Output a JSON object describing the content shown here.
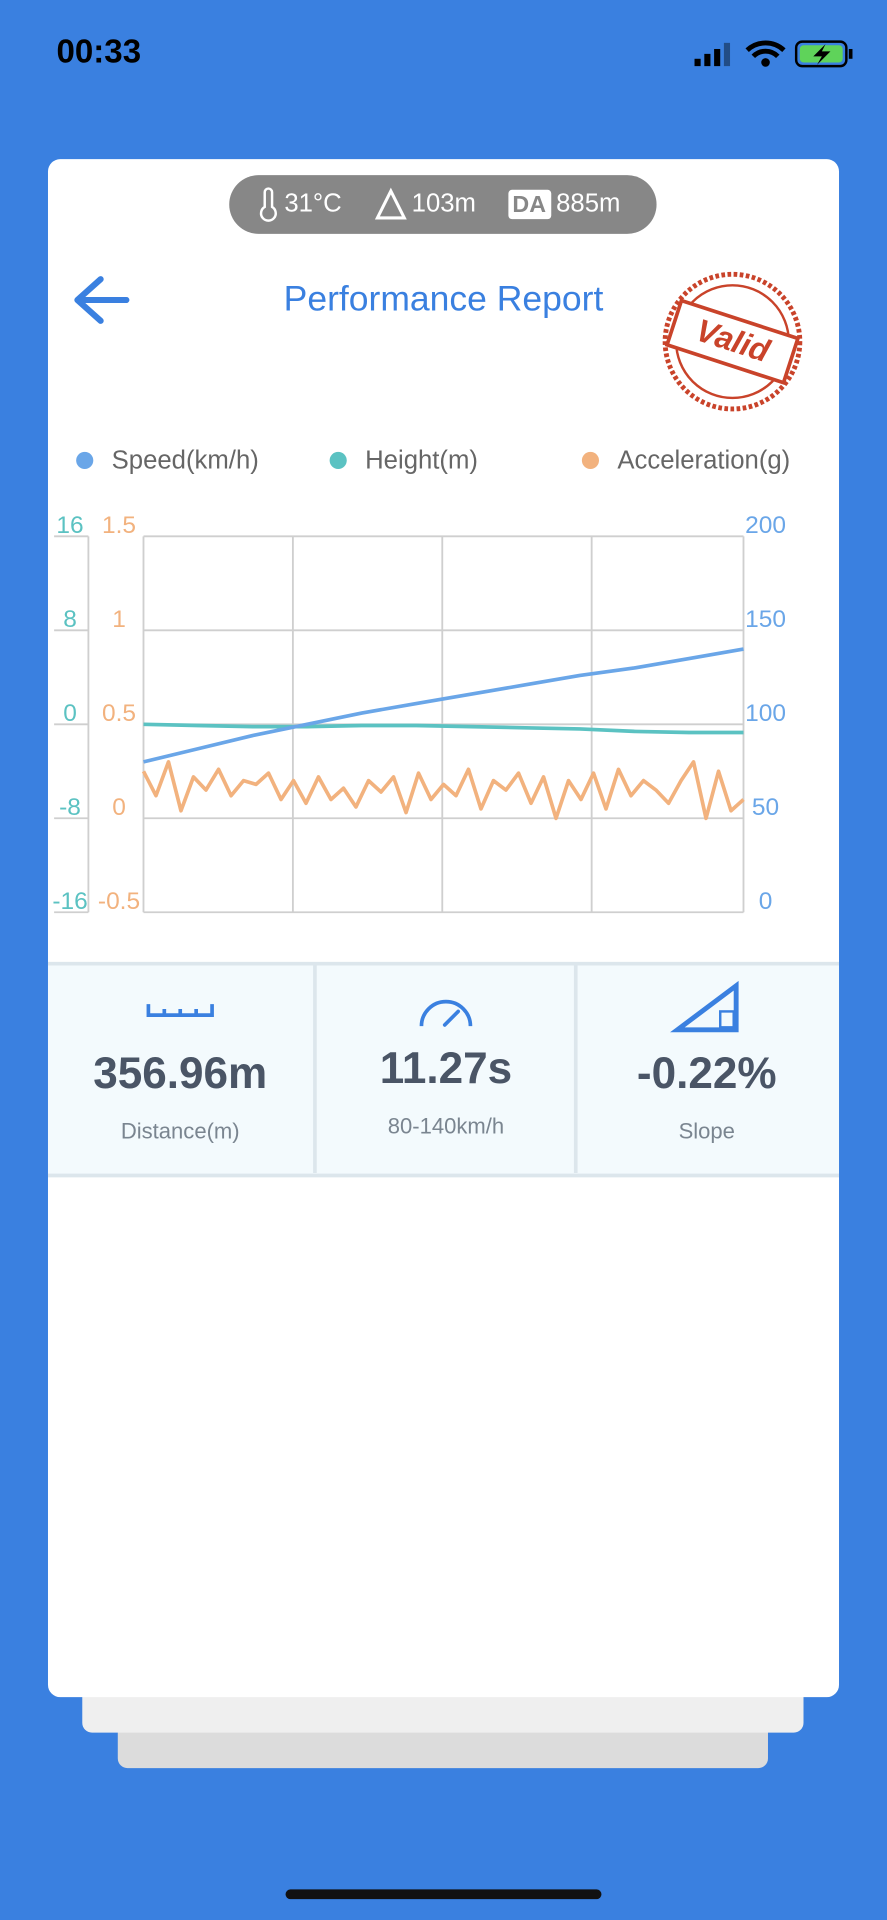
{
  "status_bar": {
    "time": "00:33"
  },
  "conditions": {
    "temperature": "31°C",
    "altitude": "103m",
    "da_label": "DA",
    "density_altitude": "885m"
  },
  "header": {
    "title": "Performance Report",
    "stamp": "Valid"
  },
  "chart": {
    "type": "line",
    "grid": true,
    "series": [
      {
        "name": "Speed(km/h)",
        "color": "#6aa6e8",
        "side": "right",
        "lim": [
          0,
          200
        ],
        "ticks": [
          0,
          50,
          100,
          150,
          200
        ],
        "values": [
          80,
          87,
          94,
          100,
          106,
          111,
          116,
          121,
          126,
          130,
          135,
          140
        ]
      },
      {
        "name": "Height(m)",
        "color": "#5bc2c2",
        "side": "outer-left",
        "lim": [
          -16,
          16
        ],
        "ticks": [
          -16,
          -8,
          0,
          8,
          16
        ],
        "values": [
          0,
          -0.1,
          -0.2,
          -0.2,
          -0.1,
          -0.1,
          -0.2,
          -0.3,
          -0.4,
          -0.6,
          -0.7,
          -0.7
        ]
      },
      {
        "name": "Acceleration(g)",
        "color": "#f2b27e",
        "side": "inner-left",
        "lim": [
          -0.5,
          1.5
        ],
        "ticks": [
          -0.5,
          0,
          0.5,
          1,
          1.5
        ],
        "values": [
          0.25,
          0.12,
          0.3,
          0.04,
          0.22,
          0.15,
          0.26,
          0.12,
          0.2,
          0.18,
          0.24,
          0.1,
          0.2,
          0.08,
          0.22,
          0.1,
          0.16,
          0.06,
          0.2,
          0.14,
          0.22,
          0.03,
          0.24,
          0.1,
          0.18,
          0.12,
          0.26,
          0.05,
          0.2,
          0.15,
          0.24,
          0.08,
          0.22,
          0.0,
          0.2,
          0.1,
          0.24,
          0.05,
          0.26,
          0.12,
          0.2,
          0.15,
          0.08,
          0.2,
          0.3,
          0.0,
          0.25,
          0.04,
          0.1
        ]
      }
    ]
  },
  "stats": [
    {
      "value": "356.96m",
      "label": "Distance(m)"
    },
    {
      "value": "11.27s",
      "label": "80-140km/h"
    },
    {
      "value": "-0.22%",
      "label": "Slope"
    }
  ]
}
